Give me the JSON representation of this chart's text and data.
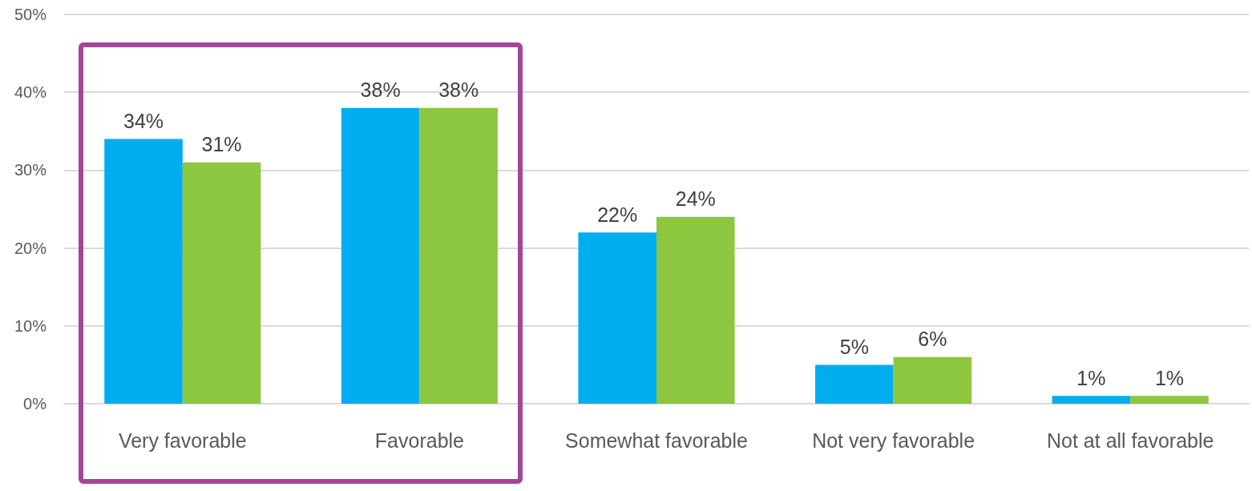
{
  "chart_data": {
    "type": "bar",
    "categories": [
      "Very favorable",
      "Favorable",
      "Somewhat favorable",
      "Not very favorable",
      "Not at all favorable"
    ],
    "series": [
      {
        "color": "#00adef",
        "values": [
          34,
          38,
          22,
          5,
          1
        ],
        "value_labels": [
          "34%",
          "38%",
          "22%",
          "5%",
          "1%"
        ]
      },
      {
        "color": "#8dc63f",
        "values": [
          31,
          38,
          24,
          6,
          1
        ],
        "value_labels": [
          "31%",
          "38%",
          "24%",
          "6%",
          "1%"
        ]
      }
    ],
    "ylim": [
      0,
      50
    ],
    "yticks": [
      {
        "value": 0,
        "label": "0%"
      },
      {
        "value": 10,
        "label": "10%"
      },
      {
        "value": 20,
        "label": "20%"
      },
      {
        "value": 30,
        "label": "30%"
      },
      {
        "value": 40,
        "label": "40%"
      },
      {
        "value": 50,
        "label": "50%"
      }
    ],
    "grid": "y"
  }
}
